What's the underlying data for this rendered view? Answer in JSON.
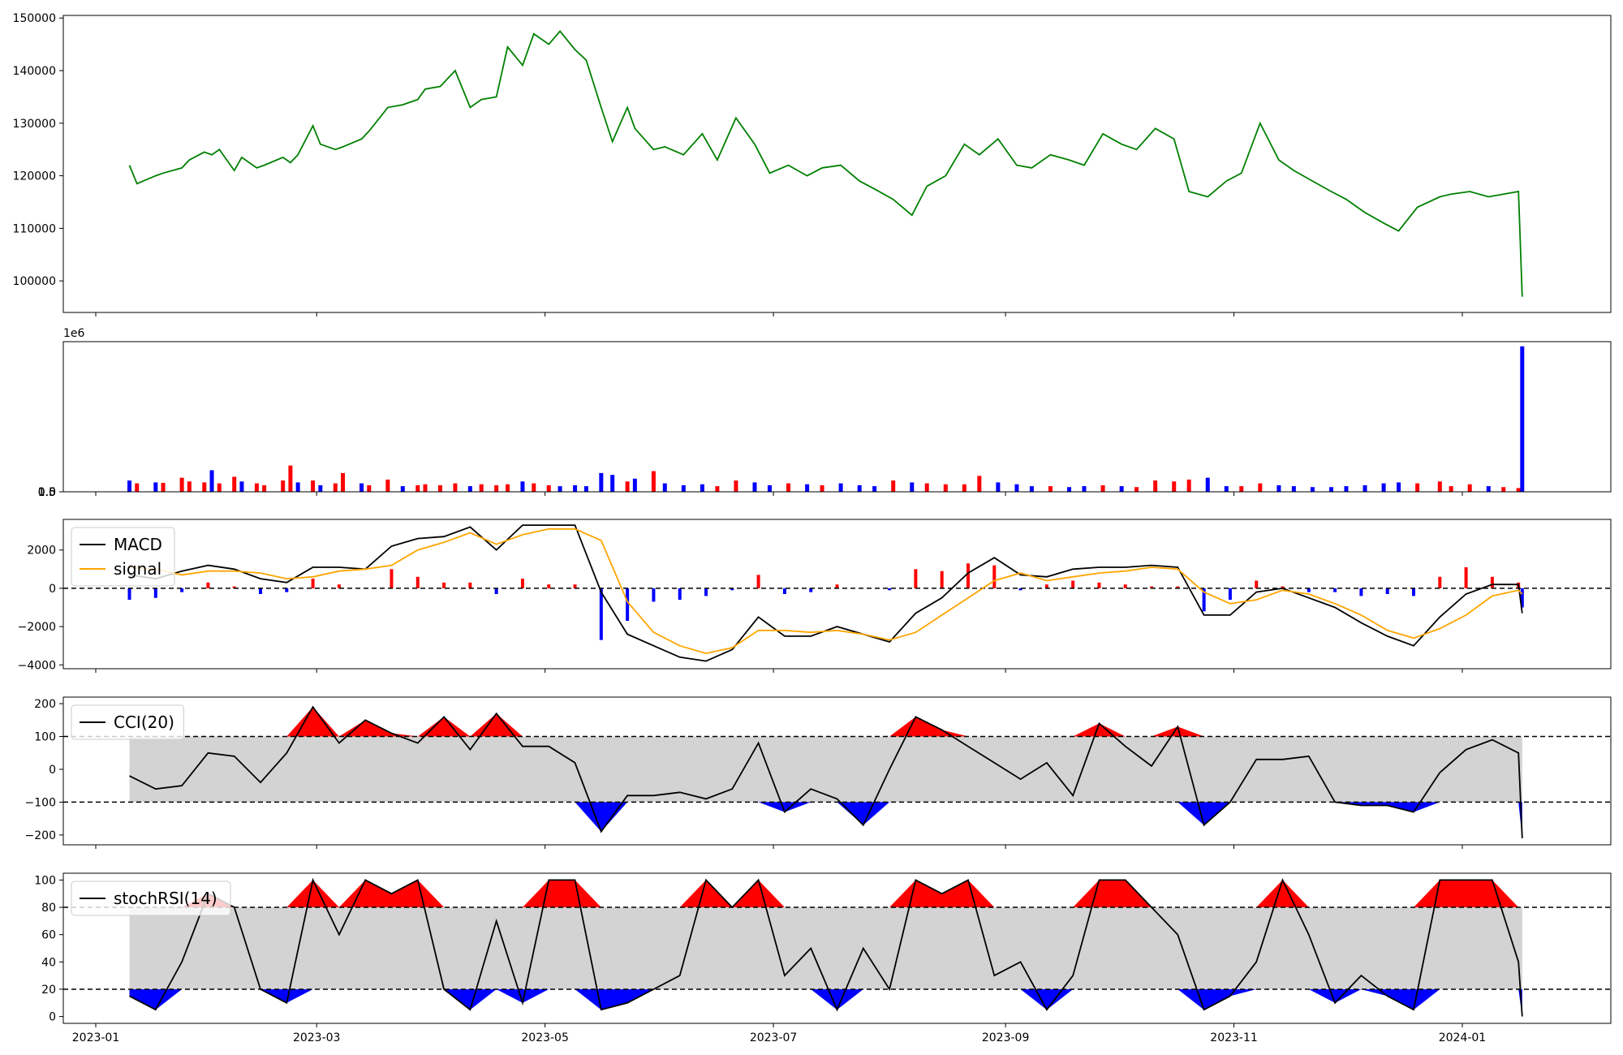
{
  "figure": {
    "x_ticks": [
      "2023-01",
      "2023-03",
      "2023-05",
      "2023-07",
      "2023-09",
      "2023-11",
      "2024-01"
    ],
    "colors": {
      "price": "#008000",
      "up": "#ff0000",
      "down": "#0000ff",
      "macd": "#000000",
      "signal": "#ffa500",
      "band": "#d3d3d3"
    }
  },
  "chart_data": [
    {
      "type": "line",
      "name": "price",
      "ylim": [
        94000,
        150500
      ],
      "y_ticks": [
        "100000",
        "110000",
        "120000",
        "130000",
        "140000",
        "150000"
      ],
      "grid": false,
      "x": [
        "2023-01-10",
        "2023-01-12",
        "2023-01-17",
        "2023-01-19",
        "2023-01-24",
        "2023-01-26",
        "2023-01-30",
        "2023-02-01",
        "2023-02-03",
        "2023-02-07",
        "2023-02-09",
        "2023-02-13",
        "2023-02-15",
        "2023-02-20",
        "2023-02-22",
        "2023-02-24",
        "2023-02-28",
        "2023-03-02",
        "2023-03-06",
        "2023-03-08",
        "2023-03-13",
        "2023-03-15",
        "2023-03-20",
        "2023-03-24",
        "2023-03-28",
        "2023-03-30",
        "2023-04-03",
        "2023-04-07",
        "2023-04-11",
        "2023-04-14",
        "2023-04-18",
        "2023-04-21",
        "2023-04-25",
        "2023-04-28",
        "2023-05-02",
        "2023-05-05",
        "2023-05-09",
        "2023-05-12",
        "2023-05-16",
        "2023-05-19",
        "2023-05-23",
        "2023-05-25",
        "2023-05-30",
        "2023-06-02",
        "2023-06-07",
        "2023-06-12",
        "2023-06-16",
        "2023-06-21",
        "2023-06-26",
        "2023-06-30",
        "2023-07-05",
        "2023-07-10",
        "2023-07-14",
        "2023-07-19",
        "2023-07-24",
        "2023-07-28",
        "2023-08-02",
        "2023-08-07",
        "2023-08-11",
        "2023-08-16",
        "2023-08-21",
        "2023-08-25",
        "2023-08-30",
        "2023-09-04",
        "2023-09-08",
        "2023-09-13",
        "2023-09-18",
        "2023-09-22",
        "2023-09-27",
        "2023-10-02",
        "2023-10-06",
        "2023-10-11",
        "2023-10-16",
        "2023-10-20",
        "2023-10-25",
        "2023-10-30",
        "2023-11-03",
        "2023-11-08",
        "2023-11-13",
        "2023-11-17",
        "2023-11-22",
        "2023-11-27",
        "2023-12-01",
        "2023-12-06",
        "2023-12-11",
        "2023-12-15",
        "2023-12-20",
        "2023-12-26",
        "2023-12-29",
        "2024-01-03",
        "2024-01-08",
        "2024-01-12",
        "2024-01-16",
        "2024-01-17"
      ],
      "y": [
        122000,
        118500,
        120000,
        120500,
        121500,
        123000,
        124500,
        124000,
        125000,
        121000,
        123500,
        121500,
        122000,
        123500,
        122500,
        124000,
        129500,
        126000,
        125000,
        125500,
        127000,
        128500,
        133000,
        133500,
        134500,
        136500,
        137000,
        140000,
        133000,
        134500,
        135000,
        144500,
        141000,
        147000,
        145000,
        147500,
        144000,
        142000,
        133000,
        126500,
        133000,
        129000,
        125000,
        125500,
        124000,
        128000,
        123000,
        131000,
        126000,
        120500,
        122000,
        120000,
        121500,
        122000,
        119000,
        117500,
        115500,
        112500,
        118000,
        120000,
        126000,
        124000,
        127000,
        122000,
        121500,
        124000,
        123000,
        122000,
        128000,
        126000,
        125000,
        129000,
        127000,
        117000,
        116000,
        119000,
        120500,
        130000,
        123000,
        121000,
        119000,
        117000,
        115500,
        113000,
        111000,
        109500,
        114000,
        116000,
        116500,
        117000,
        116000,
        116500,
        117000,
        97000
      ]
    },
    {
      "type": "bar",
      "name": "volume",
      "ylim": [
        0,
        1600000
      ],
      "y_ticks": [
        "0.0",
        "0.5",
        "1.0",
        "1.5"
      ],
      "y_offset_label": "1e6",
      "grid": false,
      "x": [
        "2023-01-10",
        "2023-01-12",
        "2023-01-17",
        "2023-01-19",
        "2023-01-24",
        "2023-01-26",
        "2023-01-30",
        "2023-02-01",
        "2023-02-03",
        "2023-02-07",
        "2023-02-09",
        "2023-02-13",
        "2023-02-15",
        "2023-02-20",
        "2023-02-22",
        "2023-02-24",
        "2023-02-28",
        "2023-03-02",
        "2023-03-06",
        "2023-03-08",
        "2023-03-13",
        "2023-03-15",
        "2023-03-20",
        "2023-03-24",
        "2023-03-28",
        "2023-03-30",
        "2023-04-03",
        "2023-04-07",
        "2023-04-11",
        "2023-04-14",
        "2023-04-18",
        "2023-04-21",
        "2023-04-25",
        "2023-04-28",
        "2023-05-02",
        "2023-05-05",
        "2023-05-09",
        "2023-05-12",
        "2023-05-16",
        "2023-05-19",
        "2023-05-23",
        "2023-05-25",
        "2023-05-30",
        "2023-06-02",
        "2023-06-07",
        "2023-06-12",
        "2023-06-16",
        "2023-06-21",
        "2023-06-26",
        "2023-06-30",
        "2023-07-05",
        "2023-07-10",
        "2023-07-14",
        "2023-07-19",
        "2023-07-24",
        "2023-07-28",
        "2023-08-02",
        "2023-08-07",
        "2023-08-11",
        "2023-08-16",
        "2023-08-21",
        "2023-08-25",
        "2023-08-30",
        "2023-09-04",
        "2023-09-08",
        "2023-09-13",
        "2023-09-18",
        "2023-09-22",
        "2023-09-27",
        "2023-10-02",
        "2023-10-06",
        "2023-10-11",
        "2023-10-16",
        "2023-10-20",
        "2023-10-25",
        "2023-10-30",
        "2023-11-03",
        "2023-11-08",
        "2023-11-13",
        "2023-11-17",
        "2023-11-22",
        "2023-11-27",
        "2023-12-01",
        "2023-12-06",
        "2023-12-11",
        "2023-12-15",
        "2023-12-20",
        "2023-12-26",
        "2023-12-29",
        "2024-01-03",
        "2024-01-08",
        "2024-01-12",
        "2024-01-16",
        "2024-01-17"
      ],
      "values": [
        120000,
        90000,
        100000,
        95000,
        150000,
        110000,
        100000,
        230000,
        90000,
        160000,
        110000,
        90000,
        70000,
        120000,
        280000,
        100000,
        120000,
        70000,
        90000,
        200000,
        90000,
        70000,
        130000,
        60000,
        70000,
        80000,
        70000,
        90000,
        60000,
        80000,
        70000,
        80000,
        110000,
        90000,
        70000,
        60000,
        70000,
        60000,
        200000,
        180000,
        110000,
        140000,
        220000,
        90000,
        70000,
        80000,
        60000,
        120000,
        100000,
        70000,
        90000,
        80000,
        70000,
        90000,
        70000,
        60000,
        120000,
        100000,
        90000,
        80000,
        80000,
        170000,
        100000,
        80000,
        60000,
        60000,
        50000,
        60000,
        70000,
        60000,
        50000,
        120000,
        110000,
        130000,
        150000,
        60000,
        60000,
        90000,
        70000,
        60000,
        50000,
        50000,
        60000,
        70000,
        90000,
        100000,
        90000,
        110000,
        60000,
        80000,
        60000,
        50000,
        40000,
        1550000
      ],
      "colors": [
        "down",
        "up",
        "down",
        "up",
        "up",
        "up",
        "up",
        "down",
        "up",
        "up",
        "down",
        "up",
        "up",
        "up",
        "up",
        "down",
        "up",
        "down",
        "up",
        "up",
        "down",
        "up",
        "up",
        "down",
        "up",
        "up",
        "up",
        "up",
        "down",
        "up",
        "up",
        "up",
        "down",
        "up",
        "up",
        "down",
        "down",
        "down",
        "down",
        "down",
        "up",
        "down",
        "up",
        "down",
        "down",
        "down",
        "up",
        "up",
        "down",
        "down",
        "up",
        "down",
        "up",
        "down",
        "down",
        "down",
        "up",
        "down",
        "up",
        "up",
        "up",
        "up",
        "down",
        "down",
        "down",
        "up",
        "down",
        "down",
        "up",
        "down",
        "up",
        "up",
        "up",
        "up",
        "down",
        "down",
        "up",
        "up",
        "down",
        "down",
        "down",
        "down",
        "down",
        "down",
        "down",
        "down",
        "up",
        "up",
        "up",
        "up",
        "down",
        "up",
        "up",
        "down"
      ]
    },
    {
      "type": "line",
      "name": "macd",
      "ylim": [
        -4200,
        3600
      ],
      "y_ticks": [
        "−4000",
        "−2000",
        "0",
        "2000"
      ],
      "legend": [
        "MACD",
        "signal"
      ],
      "legend_position": "upper-left",
      "zero_line": "dashed",
      "grid": false,
      "x": [
        "2023-01-10",
        "2023-01-17",
        "2023-01-24",
        "2023-01-31",
        "2023-02-07",
        "2023-02-14",
        "2023-02-21",
        "2023-02-28",
        "2023-03-07",
        "2023-03-14",
        "2023-03-21",
        "2023-03-28",
        "2023-04-04",
        "2023-04-11",
        "2023-04-18",
        "2023-04-25",
        "2023-05-02",
        "2023-05-09",
        "2023-05-16",
        "2023-05-23",
        "2023-05-30",
        "2023-06-06",
        "2023-06-13",
        "2023-06-20",
        "2023-06-27",
        "2023-07-04",
        "2023-07-11",
        "2023-07-18",
        "2023-07-25",
        "2023-08-01",
        "2023-08-08",
        "2023-08-15",
        "2023-08-22",
        "2023-08-29",
        "2023-09-05",
        "2023-09-12",
        "2023-09-19",
        "2023-09-26",
        "2023-10-03",
        "2023-10-10",
        "2023-10-17",
        "2023-10-24",
        "2023-10-31",
        "2023-11-07",
        "2023-11-14",
        "2023-11-21",
        "2023-11-28",
        "2023-12-05",
        "2023-12-12",
        "2023-12-19",
        "2023-12-26",
        "2024-01-02",
        "2024-01-09",
        "2024-01-16",
        "2024-01-17"
      ],
      "series": [
        {
          "name": "MACD",
          "color": "macd",
          "values": [
            700,
            500,
            900,
            1200,
            1000,
            500,
            300,
            1100,
            1100,
            1000,
            2200,
            2600,
            2700,
            3200,
            2000,
            3300,
            3300,
            3300,
            -200,
            -2400,
            -3000,
            -3600,
            -3800,
            -3200,
            -1500,
            -2500,
            -2500,
            -2000,
            -2400,
            -2800,
            -1300,
            -500,
            800,
            1600,
            700,
            600,
            1000,
            1100,
            1100,
            1200,
            1100,
            -1400,
            -1400,
            -200,
            0,
            -500,
            -1000,
            -1800,
            -2500,
            -3000,
            -1500,
            -300,
            200,
            200,
            -1300
          ]
        },
        {
          "name": "signal",
          "color": "signal",
          "values": [
            1100,
            1000,
            700,
            900,
            900,
            800,
            500,
            600,
            900,
            1000,
            1200,
            2000,
            2400,
            2900,
            2300,
            2800,
            3100,
            3100,
            2500,
            -700,
            -2300,
            -3000,
            -3400,
            -3100,
            -2200,
            -2200,
            -2300,
            -2200,
            -2400,
            -2700,
            -2300,
            -1400,
            -500,
            400,
            800,
            400,
            600,
            800,
            900,
            1100,
            1000,
            -200,
            -800,
            -600,
            -100,
            -300,
            -800,
            -1400,
            -2200,
            -2600,
            -2100,
            -1400,
            -400,
            -100,
            -300
          ]
        }
      ],
      "histogram": [
        -600,
        -500,
        -200,
        300,
        100,
        -300,
        -200,
        500,
        200,
        0,
        1000,
        600,
        300,
        300,
        -300,
        500,
        200,
        200,
        -2700,
        -1700,
        -700,
        -600,
        -400,
        -100,
        700,
        -300,
        -200,
        200,
        0,
        -100,
        1000,
        900,
        1300,
        1200,
        -100,
        200,
        400,
        300,
        200,
        100,
        100,
        -1200,
        -600,
        400,
        100,
        -200,
        -200,
        -400,
        -300,
        -400,
        600,
        1100,
        600,
        300,
        -1000
      ]
    },
    {
      "type": "area",
      "name": "cci",
      "ylim": [
        -230,
        220
      ],
      "y_ticks": [
        "−200",
        "−100",
        "0",
        "100",
        "200"
      ],
      "legend": [
        "CCI(20)"
      ],
      "legend_position": "upper-left",
      "band": [
        -100,
        100
      ],
      "grid": false,
      "x": [
        "2023-01-10",
        "2023-01-17",
        "2023-01-24",
        "2023-01-31",
        "2023-02-07",
        "2023-02-14",
        "2023-02-21",
        "2023-02-28",
        "2023-03-07",
        "2023-03-14",
        "2023-03-21",
        "2023-03-28",
        "2023-04-04",
        "2023-04-11",
        "2023-04-18",
        "2023-04-25",
        "2023-05-02",
        "2023-05-09",
        "2023-05-16",
        "2023-05-23",
        "2023-05-30",
        "2023-06-06",
        "2023-06-13",
        "2023-06-20",
        "2023-06-27",
        "2023-07-04",
        "2023-07-11",
        "2023-07-18",
        "2023-07-25",
        "2023-08-01",
        "2023-08-08",
        "2023-08-15",
        "2023-08-22",
        "2023-08-29",
        "2023-09-05",
        "2023-09-12",
        "2023-09-19",
        "2023-09-26",
        "2023-10-03",
        "2023-10-10",
        "2023-10-17",
        "2023-10-24",
        "2023-10-31",
        "2023-11-07",
        "2023-11-14",
        "2023-11-21",
        "2023-11-28",
        "2023-12-05",
        "2023-12-12",
        "2023-12-19",
        "2023-12-26",
        "2024-01-02",
        "2024-01-09",
        "2024-01-16",
        "2024-01-17"
      ],
      "values": [
        -20,
        -60,
        -50,
        50,
        40,
        -40,
        50,
        190,
        80,
        150,
        110,
        80,
        160,
        60,
        170,
        70,
        70,
        20,
        -190,
        -80,
        -80,
        -70,
        -90,
        -60,
        80,
        -130,
        -60,
        -90,
        -170,
        0,
        160,
        120,
        70,
        20,
        -30,
        20,
        -80,
        140,
        70,
        10,
        130,
        -170,
        -100,
        30,
        30,
        40,
        -100,
        -110,
        -110,
        -130,
        -10,
        60,
        90,
        50,
        -210
      ]
    },
    {
      "type": "area",
      "name": "stoch_rsi",
      "ylim": [
        -5,
        105
      ],
      "y_ticks": [
        "0",
        "20",
        "40",
        "60",
        "80",
        "100"
      ],
      "legend": [
        "stochRSI(14)"
      ],
      "legend_position": "upper-left",
      "band": [
        20,
        80
      ],
      "grid": false,
      "x": [
        "2023-01-10",
        "2023-01-17",
        "2023-01-24",
        "2023-01-31",
        "2023-02-07",
        "2023-02-14",
        "2023-02-21",
        "2023-02-28",
        "2023-03-07",
        "2023-03-14",
        "2023-03-21",
        "2023-03-28",
        "2023-04-04",
        "2023-04-11",
        "2023-04-18",
        "2023-04-25",
        "2023-05-02",
        "2023-05-09",
        "2023-05-16",
        "2023-05-23",
        "2023-05-30",
        "2023-06-06",
        "2023-06-13",
        "2023-06-20",
        "2023-06-27",
        "2023-07-04",
        "2023-07-11",
        "2023-07-18",
        "2023-07-25",
        "2023-08-01",
        "2023-08-08",
        "2023-08-15",
        "2023-08-22",
        "2023-08-29",
        "2023-09-05",
        "2023-09-12",
        "2023-09-19",
        "2023-09-26",
        "2023-10-03",
        "2023-10-10",
        "2023-10-17",
        "2023-10-24",
        "2023-10-31",
        "2023-11-07",
        "2023-11-14",
        "2023-11-21",
        "2023-11-28",
        "2023-12-05",
        "2023-12-12",
        "2023-12-19",
        "2023-12-26",
        "2024-01-02",
        "2024-01-09",
        "2024-01-16",
        "2024-01-17"
      ],
      "values": [
        15,
        5,
        40,
        90,
        80,
        20,
        10,
        100,
        60,
        100,
        90,
        100,
        20,
        5,
        70,
        10,
        100,
        100,
        5,
        10,
        20,
        30,
        100,
        80,
        100,
        30,
        50,
        5,
        50,
        20,
        100,
        90,
        100,
        30,
        40,
        5,
        30,
        100,
        100,
        80,
        60,
        5,
        15,
        40,
        100,
        60,
        10,
        30,
        15,
        5,
        100,
        100,
        100,
        40,
        0
      ]
    }
  ]
}
